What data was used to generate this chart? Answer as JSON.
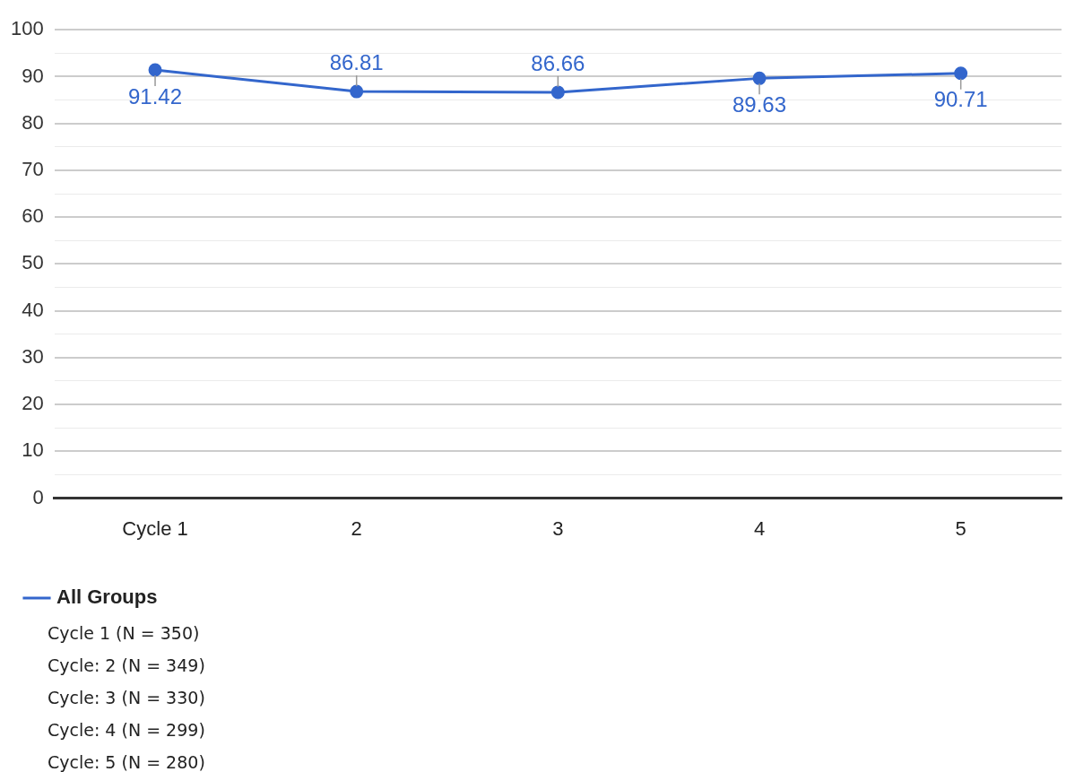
{
  "chart_data": {
    "type": "line",
    "categories": [
      "Cycle 1",
      "2",
      "3",
      "4",
      "5"
    ],
    "series": [
      {
        "name": "All Groups",
        "color": "#3366cc",
        "values": [
          91.42,
          86.81,
          86.66,
          89.63,
          90.71
        ]
      }
    ],
    "ylim": [
      0,
      100
    ],
    "yticks": [
      0,
      {
        "value": 5,
        "label": null
      },
      10,
      {
        "value": 15,
        "label": null
      },
      20,
      {
        "value": 25,
        "label": null
      },
      30,
      {
        "value": 35,
        "label": null
      },
      40,
      {
        "value": 45,
        "label": null
      },
      50,
      {
        "value": 55,
        "label": null
      },
      60,
      {
        "value": 65,
        "label": null
      },
      70,
      {
        "value": 75,
        "label": null
      },
      80,
      {
        "value": 85,
        "label": null
      },
      90,
      {
        "value": 95,
        "label": null
      },
      100
    ],
    "grid": "y",
    "legend": "bottom left",
    "marker": "circle",
    "line_style": "solid",
    "data_labels": true,
    "annotations": [
      "Cycle 1 (N = 350)",
      "Cycle: 2 (N = 349)",
      "Cycle: 3 (N = 330)",
      "Cycle: 4 (N = 299)",
      "Cycle: 5 (N = 280)"
    ]
  }
}
